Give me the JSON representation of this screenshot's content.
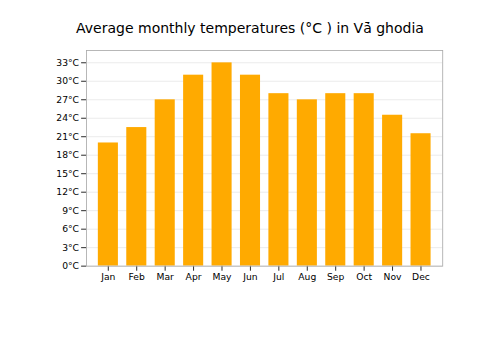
{
  "chart_data": {
    "type": "bar",
    "title": "Average monthly temperatures (°C ) in Vā̇ ghodia",
    "categories": [
      "Jan",
      "Feb",
      "Mar",
      "Apr",
      "May",
      "Jun",
      "Jul",
      "Aug",
      "Sep",
      "Oct",
      "Nov",
      "Dec"
    ],
    "values": [
      20.0,
      22.5,
      27.0,
      31.0,
      33.0,
      31.0,
      28.0,
      27.0,
      28.0,
      28.0,
      24.5,
      21.5
    ],
    "color": "#FFAA00",
    "ylim": [
      0,
      35
    ],
    "yticks": [
      {
        "value": 0,
        "label": "0°C"
      },
      {
        "value": 3,
        "label": "3°C"
      },
      {
        "value": 6,
        "label": "6°C"
      },
      {
        "value": 9,
        "label": "9°C"
      },
      {
        "value": 12,
        "label": "12°C"
      },
      {
        "value": 15,
        "label": "15°C"
      },
      {
        "value": 18,
        "label": "18°C"
      },
      {
        "value": 21,
        "label": "21°C"
      },
      {
        "value": 24,
        "label": "24°C"
      },
      {
        "value": 27,
        "label": "27°C"
      },
      {
        "value": 30,
        "label": "30°C"
      },
      {
        "value": 33,
        "label": "33°C"
      }
    ],
    "grid": true
  }
}
